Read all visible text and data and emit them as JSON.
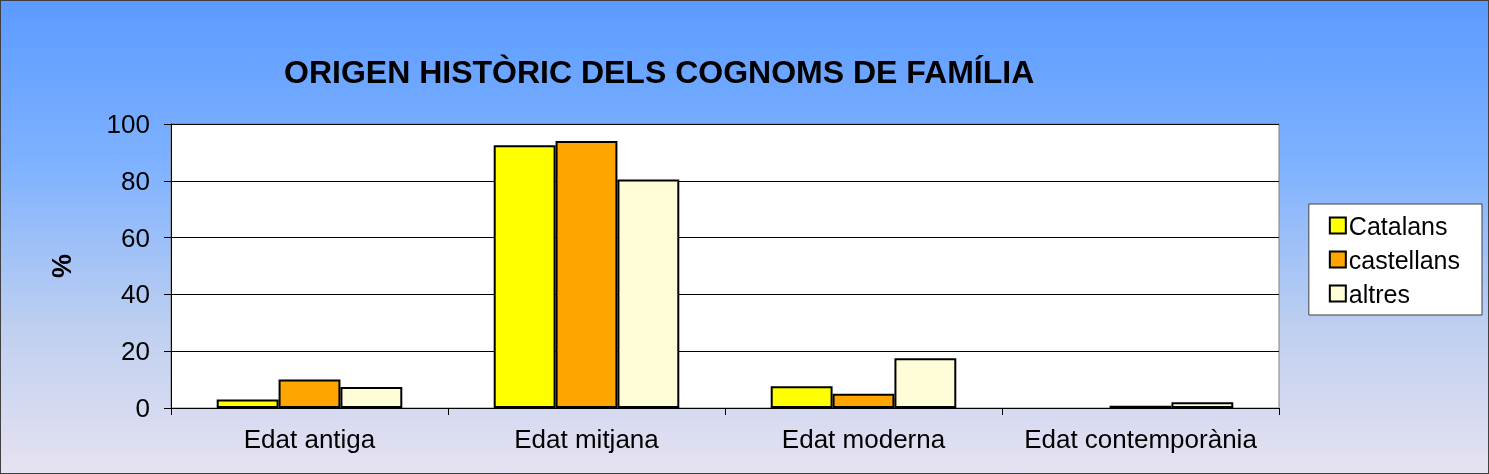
{
  "chart_data": {
    "type": "bar",
    "title": "ORIGEN HISTÒRIC DELS COGNOMS DE FAMÍLIA",
    "ylabel": "%",
    "categories": [
      "Edat antiga",
      "Edat mitjana",
      "Edat moderna",
      "Edat contemporània"
    ],
    "series": [
      {
        "name": "Catalans",
        "color": "#ffff00",
        "values": [
          3,
          92.5,
          7.7,
          0
        ]
      },
      {
        "name": "castellans",
        "color": "#ffa500",
        "values": [
          10,
          94,
          5,
          0.8
        ]
      },
      {
        "name": "altres",
        "color": "#fffdd8",
        "values": [
          7.4,
          80.5,
          17.5,
          2
        ]
      }
    ],
    "ylim": [
      0,
      100
    ],
    "yticks": [
      0,
      20,
      40,
      60,
      80,
      100
    ],
    "grid": "y",
    "legend": "right"
  }
}
